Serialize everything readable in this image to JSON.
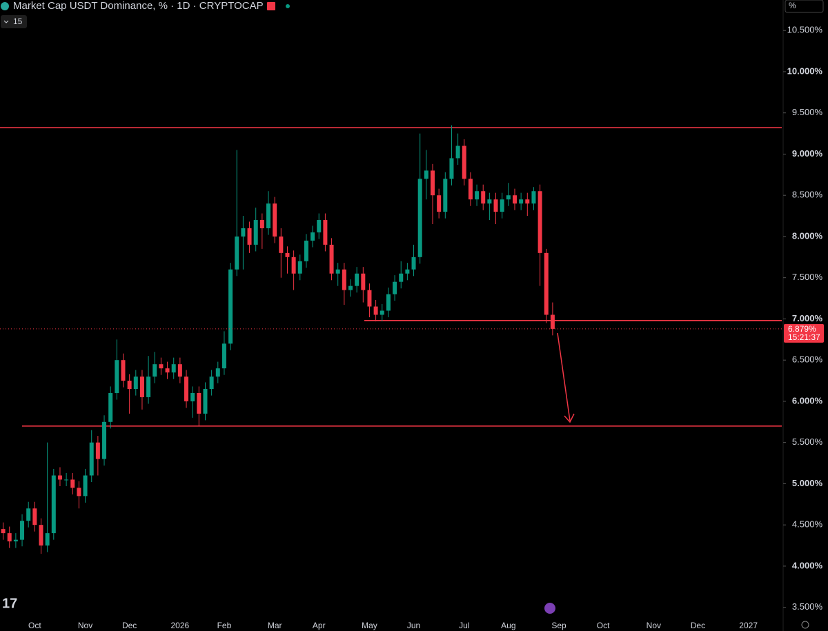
{
  "header": {
    "title": "Market Cap USDT Dominance, % · 1D · CRYPTOCAP",
    "indicator": "15",
    "scale_button": "%"
  },
  "chart_data": {
    "type": "candlestick",
    "categories": [
      null,
      null,
      null,
      null,
      null,
      "Oct",
      null,
      null,
      null,
      null,
      null,
      null,
      null,
      "Nov",
      null,
      null,
      null,
      null,
      null,
      null,
      "Dec",
      null,
      null,
      null,
      null,
      null,
      null,
      null,
      "2026",
      null,
      null,
      null,
      null,
      null,
      null,
      "Feb",
      null,
      null,
      null,
      null,
      null,
      null,
      null,
      "Mar",
      null,
      null,
      null,
      null,
      null,
      null,
      "Apr",
      null,
      null,
      null,
      null,
      null,
      null,
      null,
      "May",
      null,
      null,
      null,
      null,
      null,
      null,
      "Jun",
      null,
      null,
      null,
      null,
      null,
      null,
      null,
      "Jul",
      null,
      null,
      null,
      null,
      null,
      null,
      "Aug",
      null,
      null,
      null,
      null,
      null,
      null,
      null,
      "Sep",
      null,
      null,
      null,
      null,
      null,
      null,
      "Oct",
      null,
      null,
      null,
      null,
      null,
      null,
      null,
      "Nov",
      null,
      null,
      null,
      null,
      null,
      null,
      "Dec",
      null,
      null,
      null,
      null,
      null,
      null,
      null,
      "2027",
      null,
      null,
      null,
      null,
      null
    ],
    "open": [
      4.45,
      4.4,
      4.3,
      4.32,
      4.55,
      4.7,
      4.5,
      4.25,
      4.4,
      5.1,
      5.05,
      5.05,
      4.95,
      4.85,
      5.1,
      5.5,
      5.3,
      5.75,
      6.1,
      6.5,
      6.25,
      6.15,
      6.3,
      6.05,
      6.3,
      6.45,
      6.4,
      6.35,
      6.45,
      6.3,
      6.0,
      6.1,
      5.85,
      6.15,
      6.3,
      6.4,
      6.7,
      7.6,
      8.0,
      8.1,
      7.9,
      8.2,
      8.1,
      8.4,
      8.0,
      7.8,
      7.75,
      7.55,
      7.7,
      7.95,
      8.05,
      8.2,
      7.9,
      7.55,
      7.6,
      7.35,
      7.4,
      7.55,
      7.35,
      7.15,
      7.05,
      7.1,
      7.3,
      7.45,
      7.55,
      7.6,
      7.75,
      8.7,
      8.8,
      8.5,
      8.3,
      8.7,
      8.95,
      9.1,
      8.7,
      8.45,
      8.55,
      8.4,
      8.45,
      8.3,
      8.45,
      8.5,
      8.4,
      8.45,
      8.4,
      8.55,
      7.8,
      7.05,
      null,
      null,
      null,
      null,
      null,
      null,
      null,
      null,
      null,
      null,
      null,
      null,
      null,
      null,
      null,
      null,
      null,
      null,
      null,
      null,
      null,
      null,
      null,
      null,
      null,
      null,
      null,
      null,
      null,
      null,
      null,
      null,
      null,
      null,
      null,
      null
    ],
    "high": [
      4.53,
      4.48,
      4.4,
      4.63,
      4.78,
      4.78,
      4.58,
      5.5,
      5.18,
      5.2,
      5.13,
      5.13,
      5.03,
      5.18,
      5.65,
      5.58,
      5.83,
      6.18,
      6.75,
      6.58,
      6.33,
      6.38,
      6.38,
      6.55,
      6.6,
      6.53,
      6.48,
      6.53,
      6.53,
      6.38,
      6.18,
      6.18,
      6.23,
      6.38,
      6.48,
      6.85,
      7.68,
      9.05,
      8.25,
      8.18,
      8.35,
      8.28,
      8.55,
      8.48,
      8.1,
      7.88,
      7.83,
      7.78,
      8.03,
      8.13,
      8.28,
      8.28,
      7.98,
      7.68,
      7.68,
      7.48,
      7.63,
      7.63,
      7.43,
      7.23,
      7.18,
      7.38,
      7.53,
      7.7,
      7.68,
      7.9,
      9.25,
      9.05,
      8.88,
      8.58,
      8.78,
      9.35,
      9.25,
      9.18,
      8.78,
      8.63,
      8.63,
      8.53,
      8.53,
      8.53,
      8.65,
      8.58,
      8.53,
      8.53,
      8.6,
      8.63,
      7.85,
      7.2,
      null,
      null,
      null,
      null,
      null,
      null,
      null,
      null,
      null,
      null,
      null,
      null,
      null,
      null,
      null,
      null,
      null,
      null,
      null,
      null,
      null,
      null,
      null,
      null,
      null,
      null,
      null,
      null,
      null,
      null,
      null,
      null,
      null,
      null,
      null,
      null
    ],
    "low": [
      4.32,
      4.22,
      4.22,
      4.24,
      4.47,
      4.42,
      4.15,
      4.17,
      4.32,
      4.97,
      4.97,
      4.87,
      4.7,
      4.77,
      5.02,
      5.1,
      5.22,
      5.67,
      6.02,
      6.17,
      5.85,
      6.07,
      5.9,
      5.97,
      6.22,
      6.32,
      6.27,
      6.27,
      6.22,
      5.92,
      5.8,
      5.7,
      5.77,
      6.07,
      6.22,
      6.32,
      6.62,
      7.52,
      7.6,
      7.8,
      7.82,
      7.85,
      8.02,
      7.92,
      7.5,
      7.55,
      7.35,
      7.47,
      7.62,
      7.87,
      7.97,
      7.82,
      7.47,
      7.4,
      7.17,
      7.27,
      7.32,
      7.2,
      7.02,
      6.97,
      6.97,
      7.02,
      7.22,
      7.37,
      7.47,
      7.52,
      7.67,
      8.45,
      8.15,
      8.22,
      8.22,
      8.62,
      8.87,
      8.62,
      8.37,
      8.37,
      8.32,
      8.2,
      8.15,
      8.22,
      8.37,
      8.32,
      8.32,
      8.25,
      8.32,
      7.4,
      6.95,
      6.8,
      null,
      null,
      null,
      null,
      null,
      null,
      null,
      null,
      null,
      null,
      null,
      null,
      null,
      null,
      null,
      null,
      null,
      null,
      null,
      null,
      null,
      null,
      null,
      null,
      null,
      null,
      null,
      null,
      null,
      null,
      null,
      null,
      null,
      null,
      null,
      null
    ],
    "close": [
      4.4,
      4.3,
      4.32,
      4.55,
      4.7,
      4.5,
      4.25,
      4.4,
      5.1,
      5.05,
      5.05,
      4.95,
      4.85,
      5.1,
      5.5,
      5.3,
      5.75,
      6.1,
      6.5,
      6.25,
      6.15,
      6.3,
      6.05,
      6.3,
      6.45,
      6.4,
      6.35,
      6.45,
      6.3,
      6.0,
      6.1,
      5.85,
      6.15,
      6.3,
      6.4,
      6.7,
      7.6,
      8.0,
      8.1,
      7.9,
      8.2,
      8.1,
      8.4,
      8.0,
      7.8,
      7.75,
      7.55,
      7.7,
      7.95,
      8.05,
      8.2,
      7.9,
      7.55,
      7.6,
      7.35,
      7.4,
      7.55,
      7.35,
      7.15,
      7.05,
      7.1,
      7.3,
      7.45,
      7.55,
      7.6,
      7.75,
      8.7,
      8.8,
      8.5,
      8.3,
      8.7,
      8.95,
      9.1,
      8.7,
      8.45,
      8.55,
      8.4,
      8.45,
      8.3,
      8.45,
      8.5,
      8.4,
      8.45,
      8.4,
      8.55,
      7.8,
      7.05,
      6.879,
      null,
      null,
      null,
      null,
      null,
      null,
      null,
      null,
      null,
      null,
      null,
      null,
      null,
      null,
      null,
      null,
      null,
      null,
      null,
      null,
      null,
      null,
      null,
      null,
      null,
      null,
      null,
      null,
      null,
      null,
      null,
      null,
      null,
      null,
      null,
      null
    ],
    "up_color": "#089981",
    "down_color": "#f23645",
    "ylim": [
      3.38,
      10.87
    ],
    "yticks": [
      {
        "value": 3.5,
        "label": "3.500%"
      },
      {
        "value": 4,
        "label": "4.000%"
      },
      {
        "value": 4.5,
        "label": "4.500%"
      },
      {
        "value": 5,
        "label": "5.000%"
      },
      {
        "value": 5.5,
        "label": "5.500%"
      },
      {
        "value": 6,
        "label": "6.000%"
      },
      {
        "value": 6.5,
        "label": "6.500%"
      },
      {
        "value": 7,
        "label": "7.000%"
      },
      {
        "value": 7.5,
        "label": "7.500%"
      },
      {
        "value": 8,
        "label": "8.000%"
      },
      {
        "value": 8.5,
        "label": "8.500%"
      },
      {
        "value": 9,
        "label": "9.000%"
      },
      {
        "value": 9.5,
        "label": "9.500%"
      },
      {
        "value": 10,
        "label": "10.000%"
      },
      {
        "value": 10.5,
        "label": "10.500%"
      }
    ],
    "levels": [
      9.32,
      6.98,
      5.7
    ],
    "level_color": "#f23645",
    "last_price_label": "6.879%",
    "countdown": "15:21:37"
  }
}
